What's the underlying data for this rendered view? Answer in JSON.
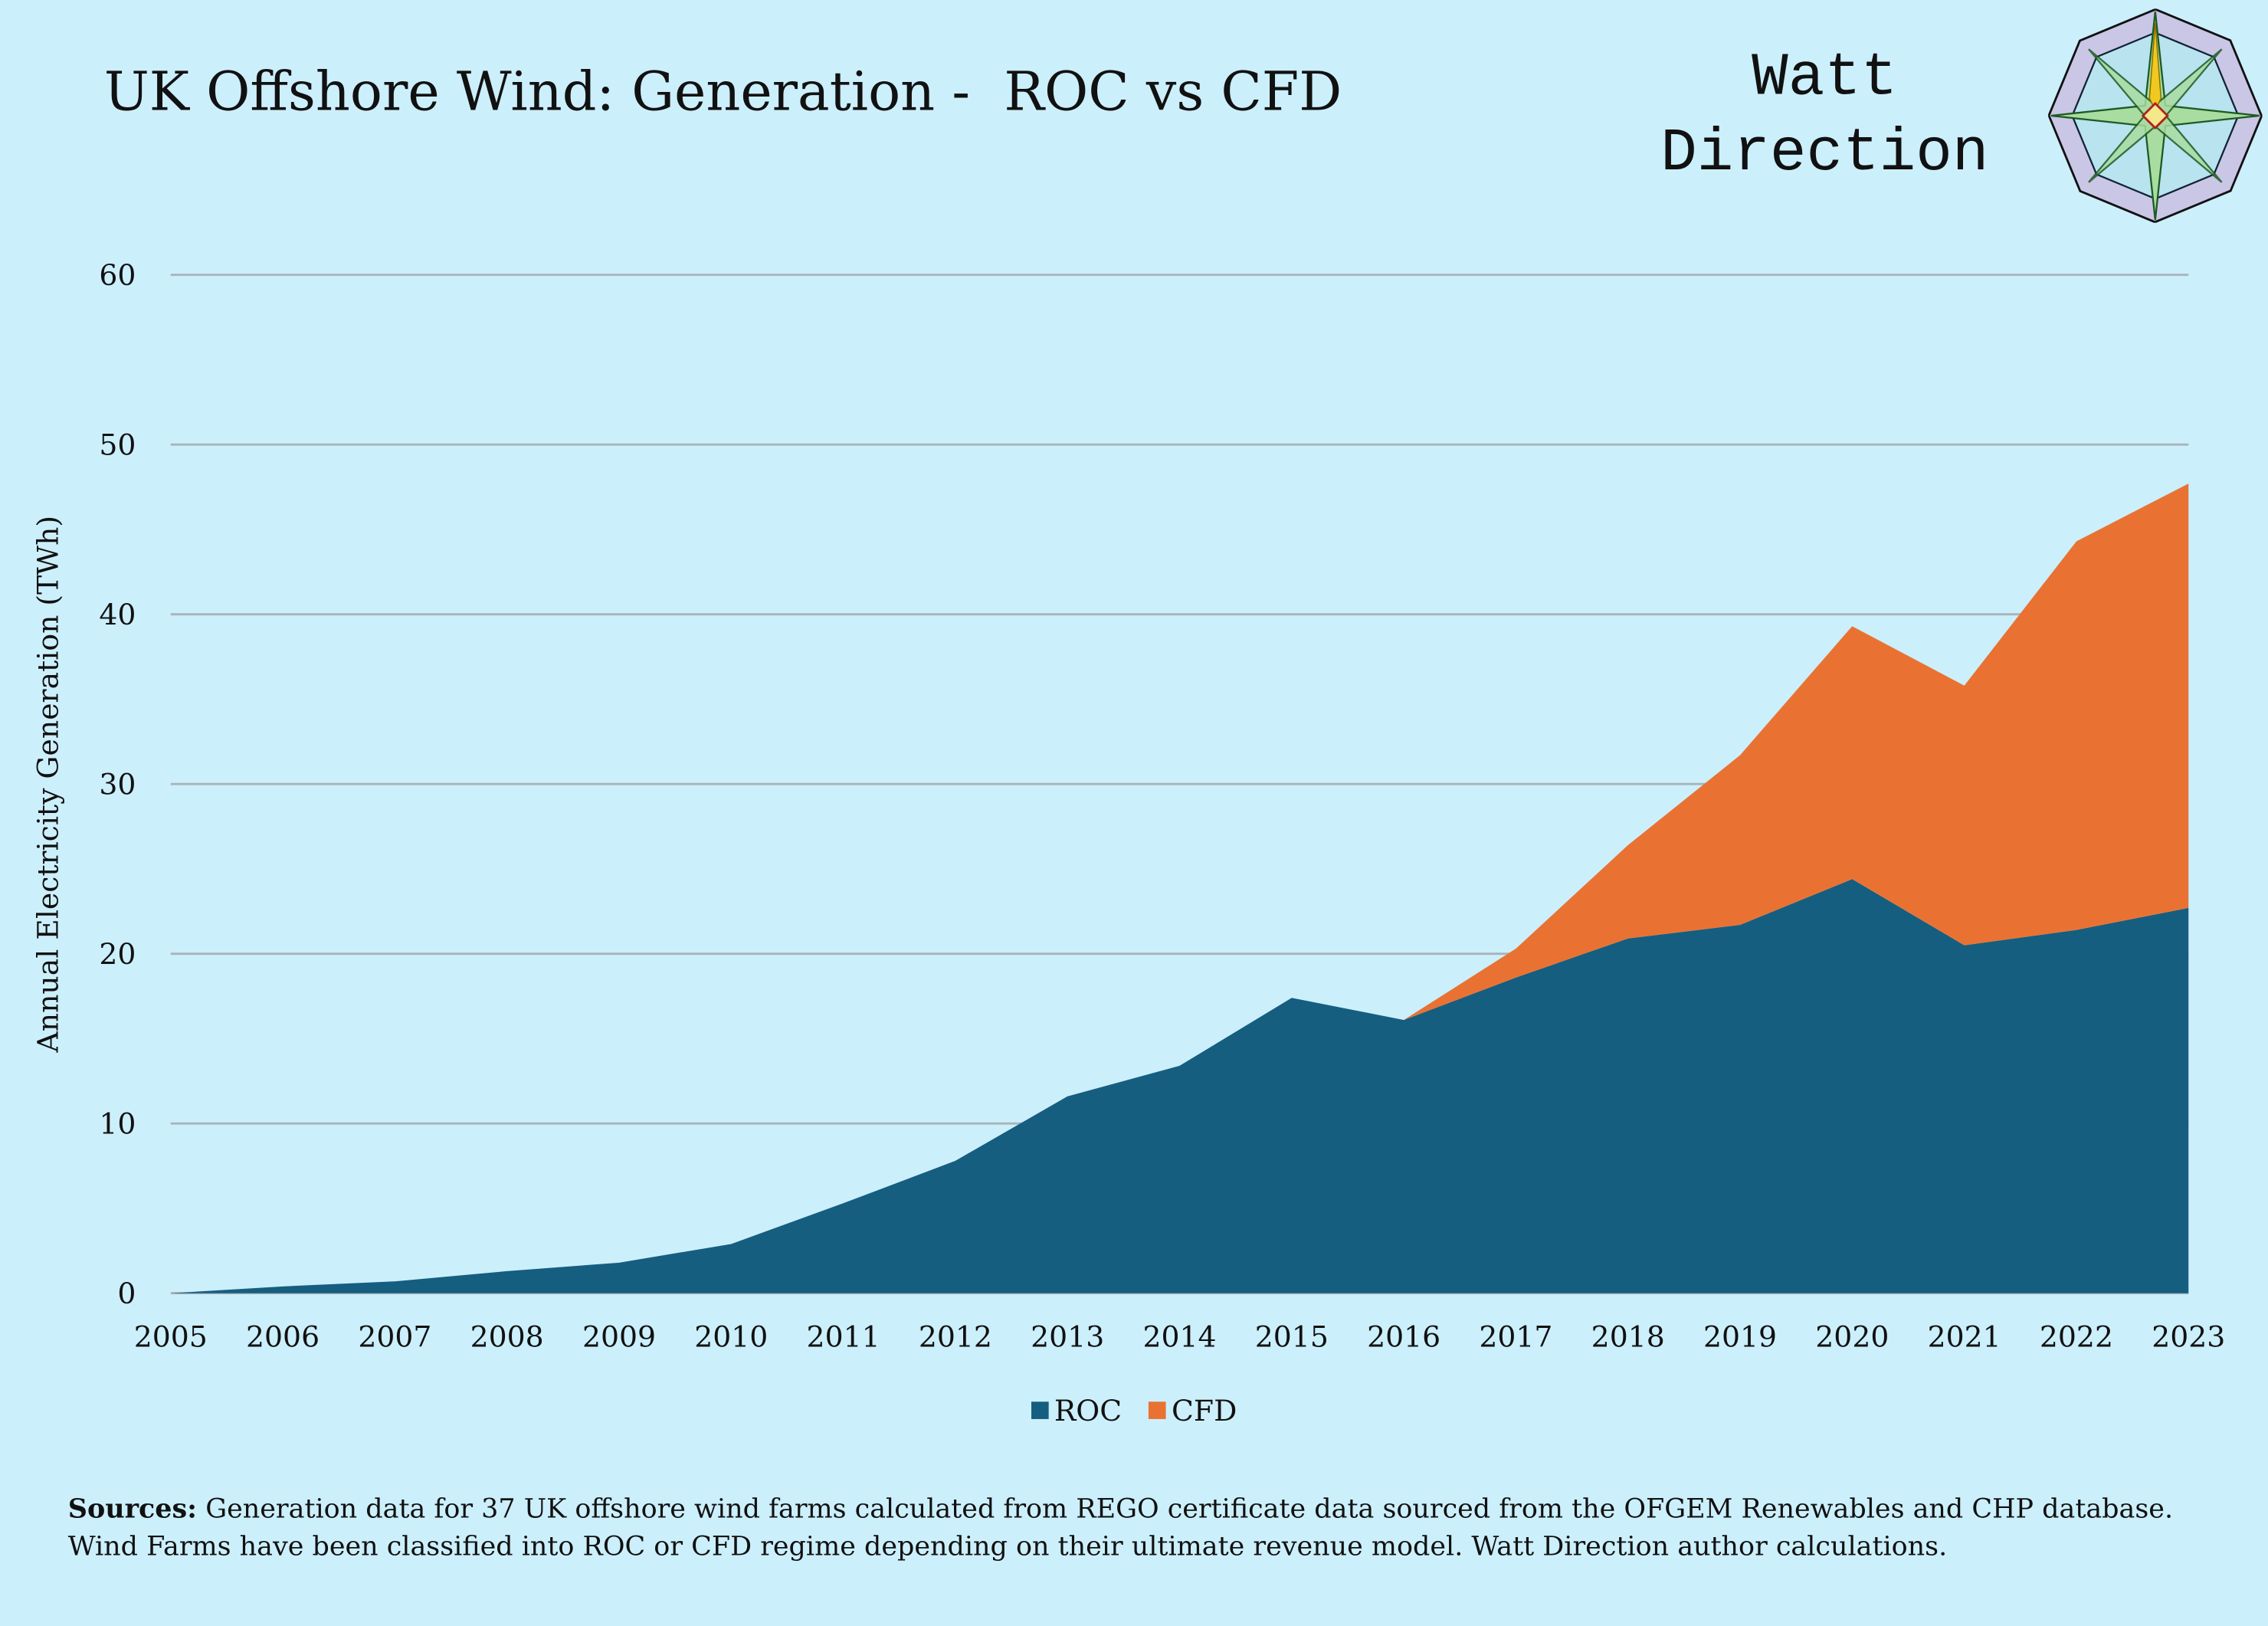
{
  "title": "UK Offshore Wind: Generation -  ROC vs CFD",
  "brand": {
    "line1": "Watt",
    "line2": "Direction",
    "logo": "compass-rose-logo"
  },
  "sources": {
    "label": "Sources:",
    "text": " Generation data for 37 UK offshore wind farms calculated from REGO certificate data sourced from the OFGEM Renewables and CHP database. Wind Farms have been classified into ROC or CFD regime depending on their ultimate revenue model. Watt Direction author calculations."
  },
  "chart_data": {
    "type": "area",
    "stacked": true,
    "title": "UK Offshore Wind: Generation -  ROC vs CFD",
    "xlabel": "",
    "ylabel": "Annual Electricity Generation (TWh)",
    "ylim": [
      0,
      60
    ],
    "yticks": [
      "0",
      "10",
      "20",
      "30",
      "40",
      "50",
      "60"
    ],
    "grid": true,
    "legend": "bottom",
    "categories": [
      "2005",
      "2006",
      "2007",
      "2008",
      "2009",
      "2010",
      "2011",
      "2012",
      "2013",
      "2014",
      "2015",
      "2016",
      "2017",
      "2018",
      "2019",
      "2020",
      "2021",
      "2022",
      "2023"
    ],
    "series": [
      {
        "name": "ROC",
        "color": "#155e80",
        "values": [
          0,
          0.4,
          0.7,
          1.3,
          1.8,
          2.9,
          5.3,
          7.8,
          11.6,
          13.4,
          17.4,
          16.1,
          18.6,
          20.9,
          21.7,
          24.4,
          20.5,
          21.4,
          22.7
        ]
      },
      {
        "name": "CFD",
        "color": "#e97233",
        "values": [
          0,
          0,
          0,
          0,
          0,
          0,
          0,
          0,
          0,
          0,
          0,
          0,
          1.7,
          5.5,
          10.0,
          14.9,
          15.3,
          22.9,
          25.0
        ]
      }
    ]
  }
}
